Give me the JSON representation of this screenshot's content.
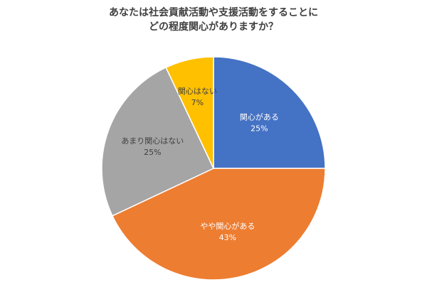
{
  "chart_data": {
    "type": "pie",
    "title_lines": [
      "あなたは社会貢献活動や支援活動をすることに",
      "どの程度関心がありますか？"
    ],
    "start_angle_deg": 0,
    "direction": "clockwise",
    "slices": [
      {
        "label": "関心がある",
        "value": 25,
        "value_label": "25%",
        "color": "#4472C4",
        "label_color": "#ffffff"
      },
      {
        "label": "やや関心がある",
        "value": 43,
        "value_label": "43%",
        "color": "#ED7D31",
        "label_color": "#ffffff"
      },
      {
        "label": "あまり関心はない",
        "value": 25,
        "value_label": "25%",
        "color": "#A5A5A5",
        "label_color": "#404040"
      },
      {
        "label": "関心はない",
        "value": 7,
        "value_label": "7%",
        "color": "#FFC000",
        "label_color": "#404040"
      }
    ],
    "legend": "none"
  }
}
